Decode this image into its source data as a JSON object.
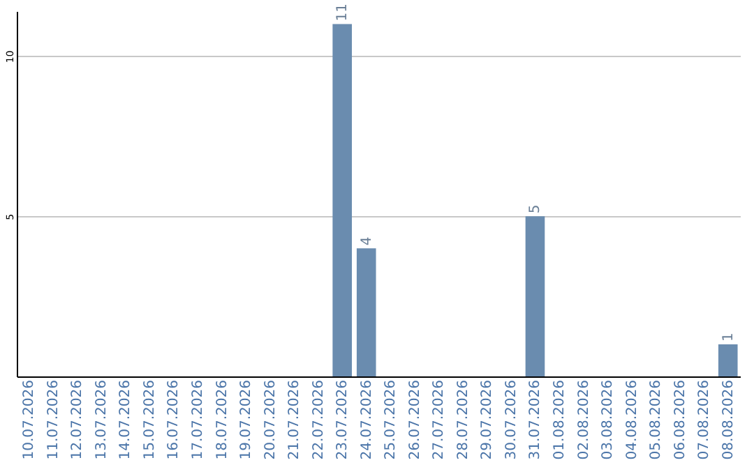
{
  "chart_data": {
    "type": "bar",
    "categories": [
      "10.07.2026",
      "11.07.2026",
      "12.07.2026",
      "13.07.2026",
      "14.07.2026",
      "15.07.2026",
      "16.07.2026",
      "17.07.2026",
      "18.07.2026",
      "19.07.2026",
      "20.07.2026",
      "21.07.2026",
      "22.07.2026",
      "23.07.2026",
      "24.07.2026",
      "25.07.2026",
      "26.07.2026",
      "27.07.2026",
      "28.07.2026",
      "29.07.2026",
      "30.07.2026",
      "31.07.2026",
      "01.08.2026",
      "02.08.2026",
      "03.08.2026",
      "04.08.2026",
      "05.08.2026",
      "06.08.2026",
      "07.08.2026",
      "08.08.2026"
    ],
    "values": [
      null,
      null,
      null,
      null,
      null,
      null,
      null,
      null,
      null,
      null,
      null,
      null,
      null,
      11,
      4,
      null,
      null,
      null,
      null,
      null,
      null,
      5,
      null,
      null,
      null,
      null,
      null,
      null,
      null,
      1
    ],
    "color": "#6a8caf",
    "ylim": [
      0,
      11.4
    ],
    "yticks": [
      5,
      10
    ],
    "grid": "y",
    "data_labels": true
  }
}
